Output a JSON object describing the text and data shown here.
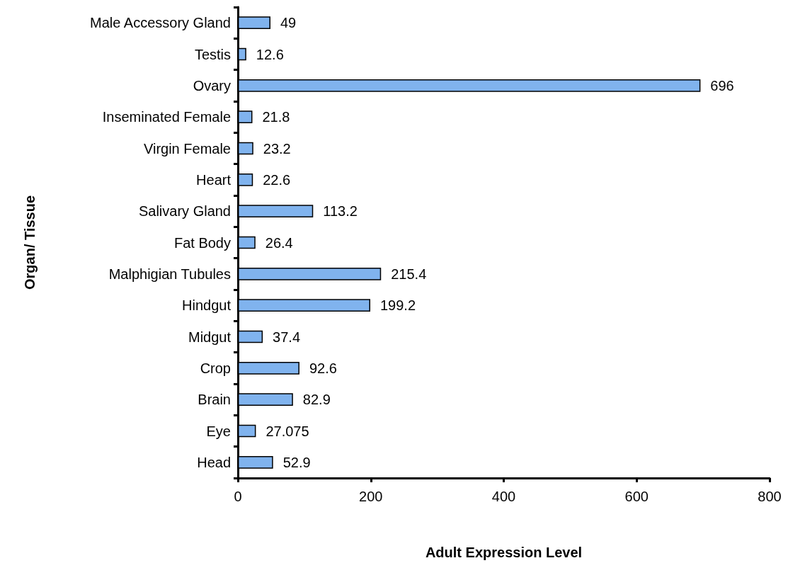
{
  "chart_data": {
    "type": "bar",
    "orientation": "horizontal",
    "xlabel": "Adult Expression Level",
    "ylabel": "Organ/ Tissue",
    "categories": [
      "Male Accessory Gland",
      "Testis",
      "Ovary",
      "Inseminated Female",
      "Virgin Female",
      "Heart",
      "Salivary Gland",
      "Fat Body",
      "Malphigian Tubules",
      "Hindgut",
      "Midgut",
      "Crop",
      "Brain",
      "Eye",
      "Head"
    ],
    "values": [
      49,
      12.6,
      696,
      21.8,
      23.2,
      22.6,
      113.2,
      26.4,
      215.4,
      199.2,
      37.4,
      92.6,
      82.9,
      27.075,
      52.9
    ],
    "color": "#80b3ee",
    "xlim": [
      0,
      800
    ],
    "xticks": [
      0,
      200,
      400,
      600,
      800
    ],
    "data_labels": true
  }
}
